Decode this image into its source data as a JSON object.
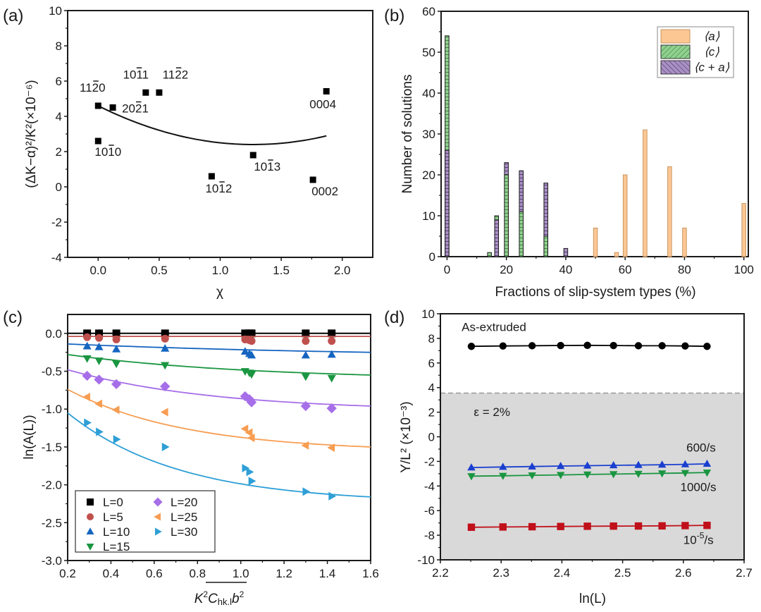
{
  "chart_data": [
    {
      "id": "a",
      "type": "scatter",
      "panel_label": "(a)",
      "xlabel": "χ",
      "ylabel": "(ΔK−α)²/K²(×10⁻⁶)",
      "xlim": [
        -0.25,
        2.25
      ],
      "ylim": [
        -4,
        10
      ],
      "xticks": [
        0.0,
        0.5,
        1.0,
        1.5,
        2.0
      ],
      "xtick_labels": [
        "0.0",
        "0.5",
        "1.0",
        "1.5",
        "2.0"
      ],
      "yticks": [
        -4,
        -2,
        0,
        2,
        4,
        6,
        8,
        10
      ],
      "ytick_labels": [
        "-4",
        "-2",
        "0",
        "2",
        "4",
        "6",
        "8",
        "10"
      ],
      "grid": false,
      "points": [
        {
          "label": "1120",
          "bar_index": 2,
          "x": 0.0,
          "y": 4.6,
          "label_pos": "above-left"
        },
        {
          "label": "2021",
          "bar_index": 2,
          "x": 0.12,
          "y": 4.5,
          "label_pos": "right"
        },
        {
          "label": "1011",
          "bar_index": 2,
          "x": 0.39,
          "y": 5.35,
          "label_pos": "above-left"
        },
        {
          "label": "1122",
          "bar_index": 2,
          "x": 0.5,
          "y": 5.35,
          "label_pos": "above-right"
        },
        {
          "label": "1010",
          "bar_index": 2,
          "x": 0.0,
          "y": 2.6,
          "label_pos": "below"
        },
        {
          "label": "1012",
          "bar_index": 2,
          "x": 0.93,
          "y": 0.6,
          "label_pos": "below"
        },
        {
          "label": "1013",
          "bar_index": 2,
          "x": 1.27,
          "y": 1.8,
          "label_pos": "below"
        },
        {
          "label": "0002",
          "bar_index": -1,
          "x": 1.76,
          "y": 0.4,
          "label_pos": "below"
        },
        {
          "label": "0004",
          "bar_index": -1,
          "x": 1.87,
          "y": 5.42,
          "label_pos": "below"
        }
      ],
      "fit": {
        "type": "quadratic",
        "vertex_x": 1.27,
        "vertex_y": 2.4,
        "a": 1.364,
        "x_range": [
          0.0,
          1.87
        ]
      }
    },
    {
      "id": "b",
      "type": "bar",
      "panel_label": "(b)",
      "xlabel": "Fractions of slip-system types (%)",
      "ylabel": "Number of solutions",
      "xlim": [
        -2,
        101.5
      ],
      "ylim": [
        0,
        60
      ],
      "xticks": [
        0,
        20,
        40,
        60,
        80,
        100
      ],
      "xtick_labels": [
        "0",
        "20",
        "40",
        "60",
        "80",
        "100"
      ],
      "yticks": [
        0,
        10,
        20,
        30,
        40,
        50,
        60
      ],
      "ytick_labels": [
        "0",
        "10",
        "20",
        "30",
        "40",
        "50",
        "60"
      ],
      "legend_position": "top-right",
      "series": [
        {
          "name": "⟨a⟩",
          "color": "#fdc794",
          "pattern": "none",
          "points": [
            [
              50,
              7
            ],
            [
              57.1,
              1
            ],
            [
              60,
              20
            ],
            [
              66.7,
              31
            ],
            [
              75,
              22
            ],
            [
              80,
              7
            ],
            [
              100,
              13
            ]
          ]
        },
        {
          "name": "⟨c⟩",
          "color": "#8fd18f",
          "pattern": "hatch-forward",
          "points": [
            [
              0,
              54
            ],
            [
              14.3,
              1
            ],
            [
              16.7,
              10
            ],
            [
              20,
              20
            ],
            [
              25,
              11
            ],
            [
              33.3,
              5
            ]
          ]
        },
        {
          "name": "⟨c + a⟩",
          "color": "#a98fc4",
          "pattern": "hatch-back",
          "points": [
            [
              0,
              26
            ],
            [
              16.7,
              9
            ],
            [
              20,
              23
            ],
            [
              25,
              21
            ],
            [
              33.3,
              18
            ],
            [
              40,
              2
            ]
          ]
        }
      ]
    },
    {
      "id": "c",
      "type": "scatter",
      "panel_label": "(c)",
      "xlabel": "K²C̄hk.l b²",
      "xlabel_parts": {
        "k": "K",
        "sup1": "2",
        "c": "C",
        "sub": "hk.l",
        "b": "b",
        "sup2": "2"
      },
      "ylabel": "ln(A(L))",
      "xlim": [
        0.2,
        1.6
      ],
      "ylim": [
        -3.0,
        0.25
      ],
      "xticks": [
        0.2,
        0.4,
        0.6,
        0.8,
        1.0,
        1.2,
        1.4,
        1.6
      ],
      "xtick_labels": [
        "0.2",
        "0.4",
        "0.6",
        "0.8",
        "1.0",
        "1.2",
        "1.4",
        "1.6"
      ],
      "yticks": [
        -3.0,
        -2.5,
        -2.0,
        -1.5,
        -1.0,
        -0.5,
        0.0
      ],
      "ytick_labels": [
        "-3.0",
        "-2.5",
        "-2.0",
        "-1.5",
        "-1.0",
        "-0.5",
        "0.0"
      ],
      "legend_position": "bottom-left",
      "x": [
        0.29,
        0.345,
        0.425,
        0.65,
        1.02,
        1.04,
        1.05,
        1.3,
        1.42
      ],
      "series": [
        {
          "name": "L=0",
          "color": "#000000",
          "marker": "square",
          "y": [
            0,
            0,
            0,
            0,
            0,
            0,
            0,
            0,
            0
          ],
          "fit": [
            0,
            0,
            0
          ]
        },
        {
          "name": "L=5",
          "color": "#c0504d",
          "marker": "circle",
          "y": [
            -0.05,
            -0.06,
            -0.08,
            -0.07,
            -0.08,
            -0.09,
            -0.1,
            -0.1,
            -0.1
          ],
          "fit": [
            -0.04,
            -0.07,
            0
          ]
        },
        {
          "name": "L=10",
          "color": "#1565c0",
          "marker": "triangle-up",
          "y": [
            -0.17,
            -0.18,
            -0.21,
            -0.2,
            -0.24,
            -0.27,
            -0.29,
            -0.29,
            -0.28
          ],
          "fit": [
            -0.14,
            -0.25,
            0.6
          ]
        },
        {
          "name": "L=15",
          "color": "#1a9641",
          "marker": "triangle-down",
          "y": [
            -0.33,
            -0.36,
            -0.4,
            -0.42,
            -0.5,
            -0.52,
            -0.54,
            -0.57,
            -0.59
          ],
          "fit": [
            -0.28,
            -0.55,
            1.0
          ]
        },
        {
          "name": "L=20",
          "color": "#a66ee8",
          "marker": "diamond",
          "y": [
            -0.56,
            -0.61,
            -0.67,
            -0.7,
            -0.83,
            -0.87,
            -0.91,
            -0.96,
            -0.99
          ],
          "fit": [
            -0.48,
            -0.96,
            1.3
          ]
        },
        {
          "name": "L=25",
          "color": "#f79d52",
          "marker": "triangle-left",
          "y": [
            -0.84,
            -0.93,
            -1.01,
            -1.04,
            -1.26,
            -1.31,
            -1.38,
            -1.48,
            -1.51
          ],
          "fit": [
            -0.74,
            -1.5,
            1.6
          ]
        },
        {
          "name": "L=30",
          "color": "#2e9fd6",
          "marker": "triangle-right",
          "y": [
            -1.18,
            -1.3,
            -1.4,
            -1.5,
            -1.78,
            -1.83,
            -1.95,
            -2.09,
            -2.15
          ],
          "fit": [
            -1.05,
            -2.16,
            1.7
          ]
        }
      ]
    },
    {
      "id": "d",
      "type": "line",
      "panel_label": "(d)",
      "xlabel": "ln(L)",
      "ylabel": "Y/L² (×10⁻³)",
      "xlim": [
        2.2,
        2.7
      ],
      "ylim": [
        -10,
        10
      ],
      "xticks": [
        2.2,
        2.3,
        2.4,
        2.5,
        2.6,
        2.7
      ],
      "xtick_labels": [
        "2.2",
        "2.3",
        "2.4",
        "2.5",
        "2.6",
        "2.7"
      ],
      "yticks": [
        -10,
        -8,
        -6,
        -4,
        -2,
        0,
        2,
        4,
        6,
        8,
        10
      ],
      "ytick_labels": [
        "-10",
        "-8",
        "-6",
        "-4",
        "-2",
        "0",
        "2",
        "4",
        "6",
        "8",
        "10"
      ],
      "shaded_region": {
        "ymax": 3.55,
        "color": "#d9d9d9",
        "boundary": "dashed"
      },
      "annotations": [
        {
          "text": "As-extruded",
          "x": 2.235,
          "y": 8.6
        },
        {
          "text": "ε = 2%",
          "x": 2.255,
          "y": 1.7
        },
        {
          "text": "600/s",
          "x": 2.605,
          "y": -1.2
        },
        {
          "text": "1000/s",
          "x": 2.595,
          "y": -4.4
        },
        {
          "text_base": "10",
          "text_sup": "-5",
          "text_tail": "/s",
          "x": 2.6,
          "y": -8.7
        }
      ],
      "x": [
        2.251,
        2.303,
        2.351,
        2.398,
        2.442,
        2.485,
        2.526,
        2.565,
        2.603,
        2.639
      ],
      "series": [
        {
          "name": "As-extruded",
          "color": "#000000",
          "marker": "circle",
          "y": [
            7.35,
            7.38,
            7.4,
            7.42,
            7.43,
            7.42,
            7.4,
            7.4,
            7.38,
            7.35
          ]
        },
        {
          "name": "600/s",
          "color": "#1a3fcf",
          "marker": "triangle-up",
          "y": [
            -2.5,
            -2.45,
            -2.42,
            -2.38,
            -2.35,
            -2.32,
            -2.3,
            -2.27,
            -2.24,
            -2.2
          ]
        },
        {
          "name": "1000/s",
          "color": "#1a9641",
          "marker": "triangle-down",
          "y": [
            -3.2,
            -3.17,
            -3.13,
            -3.1,
            -3.06,
            -3.03,
            -3.0,
            -2.97,
            -2.94,
            -2.9
          ]
        },
        {
          "name": "10⁻⁵/s",
          "color": "#c0101a",
          "marker": "square",
          "y": [
            -7.35,
            -7.33,
            -7.31,
            -7.29,
            -7.27,
            -7.26,
            -7.25,
            -7.24,
            -7.22,
            -7.2
          ]
        }
      ]
    }
  ]
}
